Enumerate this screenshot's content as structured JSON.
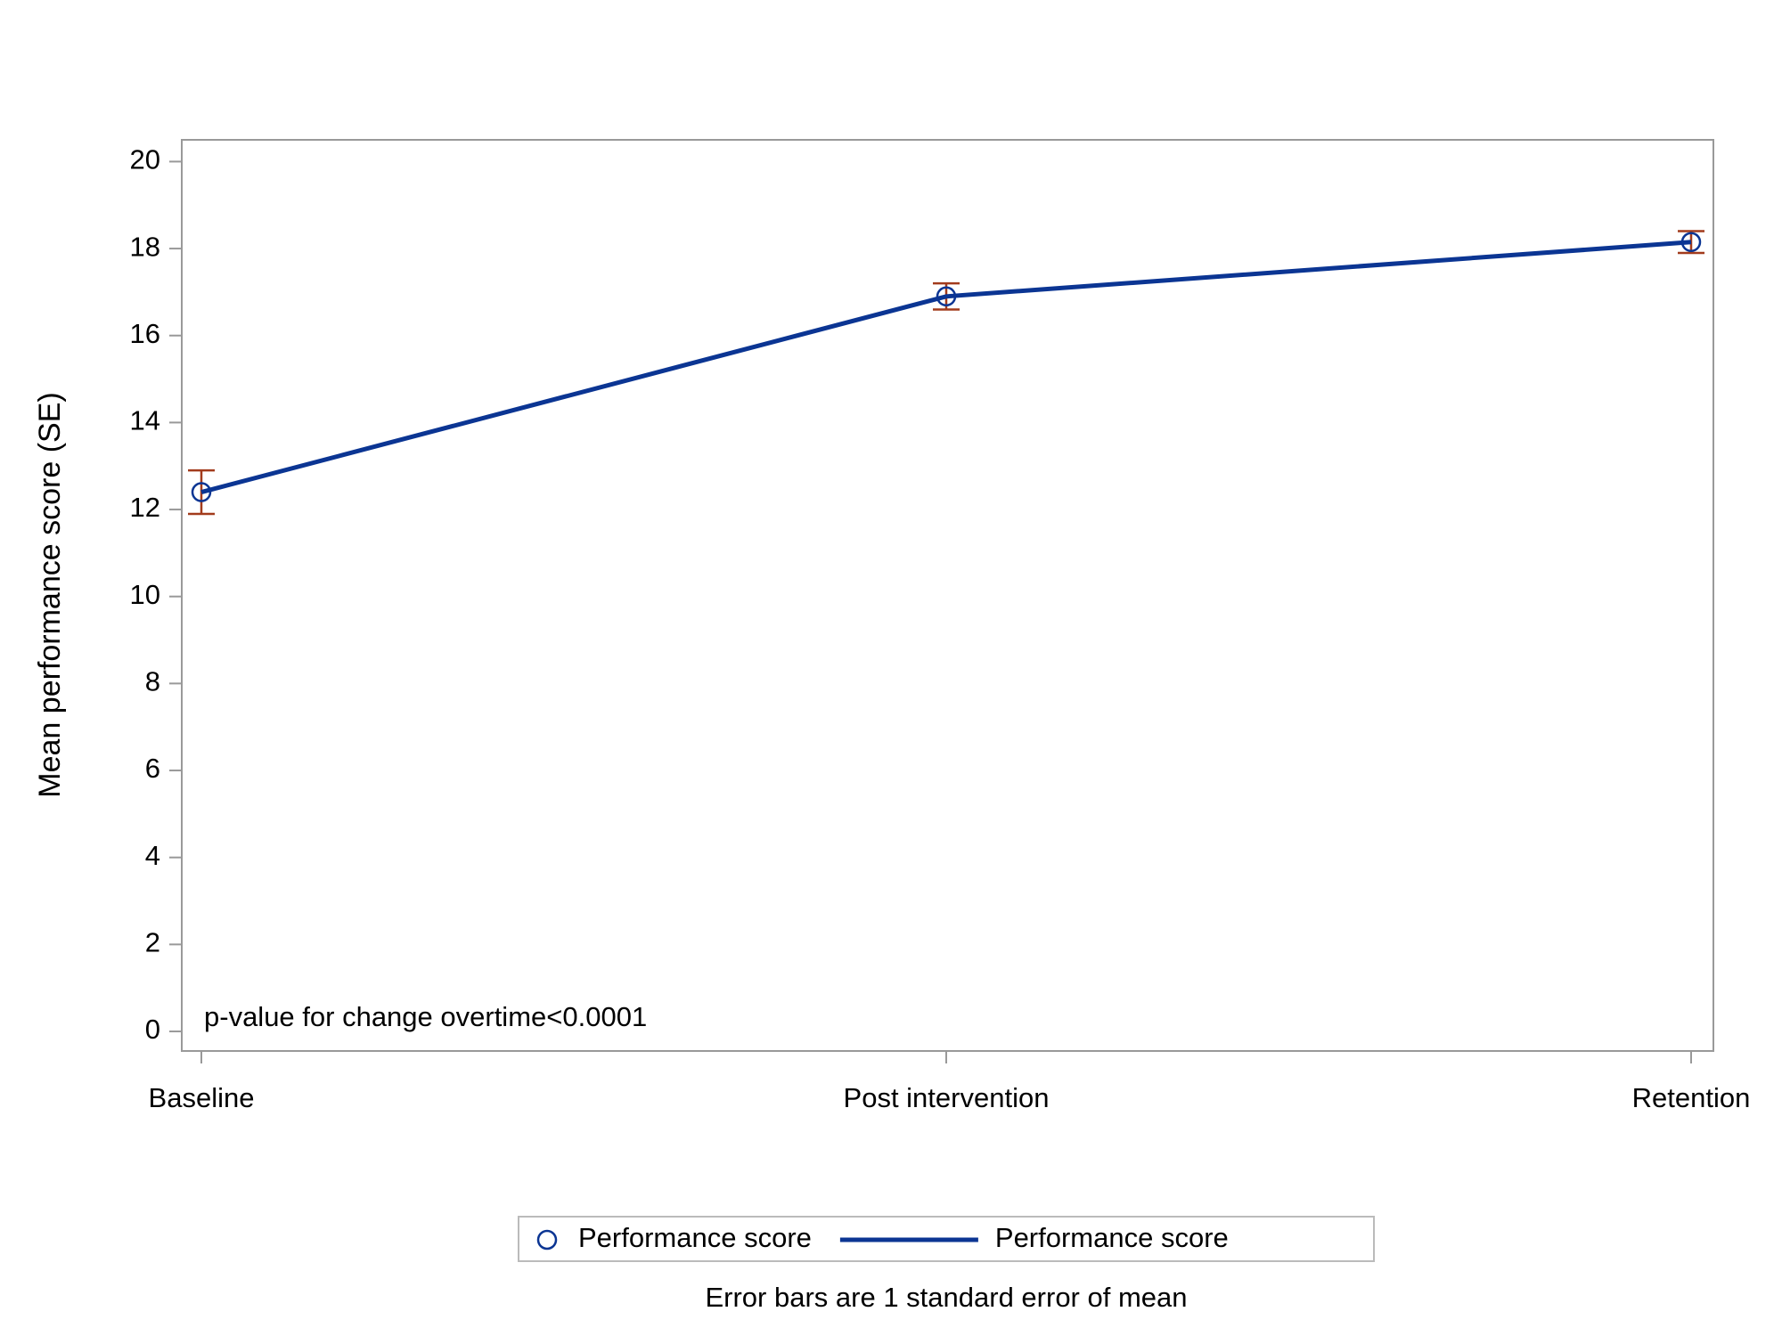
{
  "chart_data": {
    "type": "line",
    "ylabel": "Mean performance score (SE)",
    "categories": [
      "Baseline",
      "Post intervention",
      "Retention"
    ],
    "series": [
      {
        "name": "Performance score",
        "type": "scatter",
        "color": "#0b3593",
        "error_color": "#a23b1c",
        "values": [
          12.4,
          16.9,
          18.15
        ],
        "errors": [
          0.5,
          0.3,
          0.25
        ]
      },
      {
        "name": "Performance score",
        "type": "line",
        "color": "#0b3593",
        "values": [
          12.4,
          16.9,
          18.15
        ]
      }
    ],
    "ylim": [
      -0.45,
      20.5
    ],
    "yticks": [
      0,
      2,
      4,
      6,
      8,
      10,
      12,
      14,
      16,
      18,
      20
    ],
    "annotation": "p-value for change overtime<0.0001",
    "footnote": "Error bars are 1 standard error of mean",
    "grid": false
  }
}
